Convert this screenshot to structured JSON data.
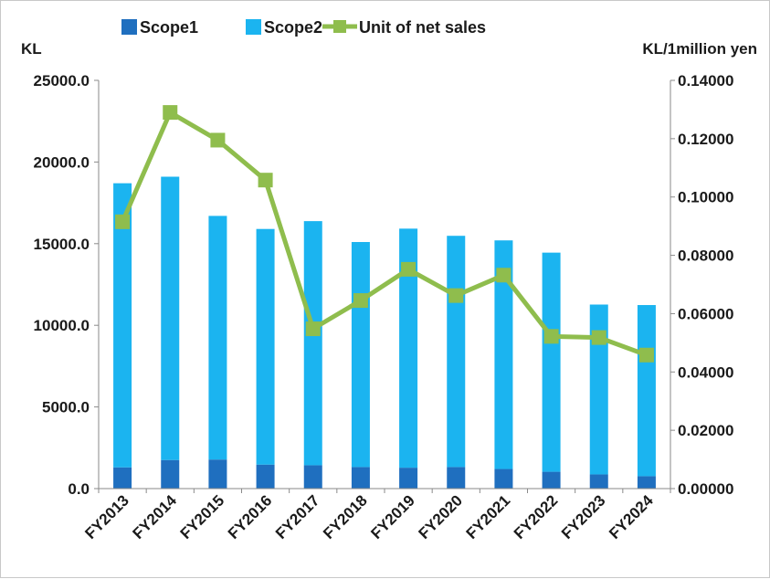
{
  "chart_data": {
    "type": "bar",
    "categories": [
      "FY2013",
      "FY2014",
      "FY2015",
      "FY2016",
      "FY2017",
      "FY2018",
      "FY2019",
      "FY2020",
      "FY2021",
      "FY2022",
      "FY2023",
      "FY2024"
    ],
    "series": [
      {
        "name": "Scope1",
        "type": "bar",
        "stack": "total",
        "axis": "left",
        "color": "#1f6fbf",
        "values": [
          1300,
          1750,
          1780,
          1470,
          1430,
          1320,
          1280,
          1320,
          1200,
          1030,
          870,
          760
        ]
      },
      {
        "name": "Scope2",
        "type": "bar",
        "stack": "total",
        "axis": "left",
        "color": "#1bb4f0",
        "values": [
          17400,
          17350,
          14920,
          14430,
          14950,
          13780,
          14640,
          14160,
          14000,
          13420,
          10400,
          10480
        ]
      },
      {
        "name": "Unit of net sales",
        "type": "line",
        "axis": "right",
        "color": "#8fbd4d",
        "values": [
          0.0915,
          0.129,
          0.1195,
          0.1058,
          0.0548,
          0.0645,
          0.0752,
          0.0662,
          0.0732,
          0.0522,
          0.0518,
          0.0458
        ]
      }
    ],
    "left_axis": {
      "unit_label": "KL",
      "min": 0,
      "max": 25000,
      "ticks": [
        "0.0",
        "5000.0",
        "10000.0",
        "15000.0",
        "20000.0",
        "25000.0"
      ]
    },
    "right_axis": {
      "unit_label": "KL/1million yen",
      "min": 0,
      "max": 0.14,
      "ticks": [
        "0.00000",
        "0.02000",
        "0.04000",
        "0.06000",
        "0.08000",
        "0.10000",
        "0.12000",
        "0.14000"
      ]
    },
    "legend": {
      "position": "top",
      "items": [
        "Scope1",
        "Scope2",
        "Unit of net sales"
      ]
    },
    "grid": false
  }
}
